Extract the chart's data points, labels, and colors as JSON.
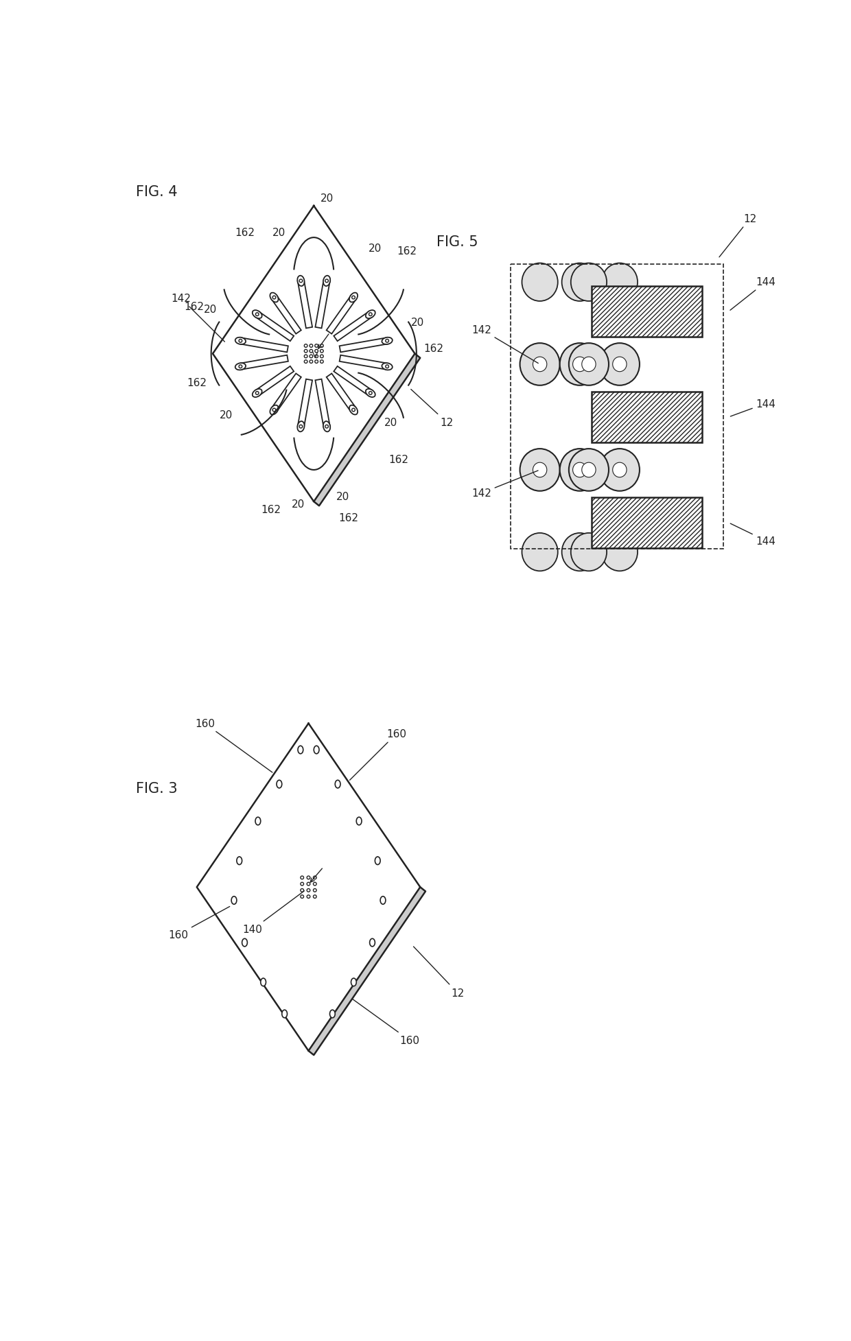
{
  "bg_color": "#ffffff",
  "line_color": "#222222",
  "fig4_label": "FIG. 4",
  "fig3_label": "FIG. 3",
  "fig5_label": "FIG. 5",
  "fig_label_fontsize": 15,
  "anno_fontsize": 12
}
